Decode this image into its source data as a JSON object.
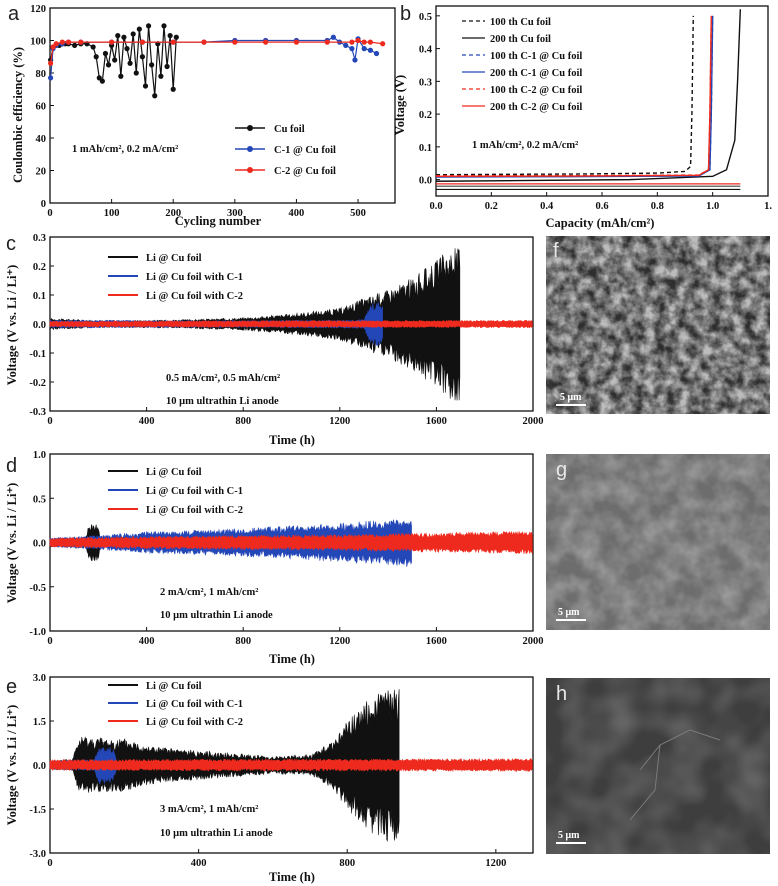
{
  "colors": {
    "black": "#111111",
    "blue": "#2447b8",
    "red": "#ee2a1e"
  },
  "chart_data": [
    {
      "panel": "a",
      "type": "scatter",
      "xlabel": "Cycling number",
      "ylabel": "Coulombic efficiency (%)",
      "xlim": [
        0,
        560
      ],
      "ylim": [
        0,
        120
      ],
      "xticks": [
        0,
        100,
        200,
        300,
        400,
        500
      ],
      "yticks": [
        0,
        20,
        40,
        60,
        80,
        100,
        120
      ],
      "legend_pos": "center-right",
      "annotation": "1 mAh/cm², 0.2 mA/cm²",
      "series": [
        {
          "name": "Cu foil",
          "color": "#111111",
          "x": [
            1,
            5,
            10,
            15,
            20,
            25,
            30,
            40,
            50,
            60,
            70,
            75,
            80,
            85,
            90,
            95,
            100,
            105,
            110,
            115,
            120,
            125,
            130,
            135,
            140,
            145,
            150,
            155,
            160,
            165,
            170,
            175,
            180,
            185,
            190,
            195,
            200,
            205
          ],
          "y": [
            88,
            96,
            97,
            97,
            98,
            98,
            98,
            97,
            98,
            98,
            96,
            90,
            77,
            75,
            92,
            85,
            97,
            88,
            103,
            78,
            102,
            95,
            86,
            104,
            80,
            107,
            90,
            72,
            109,
            85,
            66,
            98,
            78,
            109,
            84,
            103,
            70,
            102
          ]
        },
        {
          "name": "C-1 @ Cu foil",
          "color": "#2447b8",
          "x": [
            1,
            5,
            10,
            20,
            30,
            50,
            100,
            150,
            200,
            250,
            300,
            350,
            400,
            450,
            460,
            470,
            480,
            490,
            495,
            500,
            510,
            520,
            530
          ],
          "y": [
            77,
            95,
            97,
            98,
            99,
            99,
            99,
            99,
            99,
            99,
            100,
            100,
            100,
            100,
            102,
            99,
            97,
            95,
            88,
            101,
            95,
            94,
            92
          ]
        },
        {
          "name": "C-2 @ Cu foil",
          "color": "#ee2a1e",
          "x": [
            1,
            5,
            10,
            20,
            30,
            50,
            100,
            150,
            200,
            250,
            300,
            350,
            400,
            450,
            490,
            500,
            510,
            520,
            540
          ],
          "y": [
            86,
            96,
            98,
            99,
            99,
            99,
            99,
            99,
            99,
            99,
            99,
            99,
            99,
            99,
            99,
            100,
            99,
            99,
            98
          ]
        }
      ]
    },
    {
      "panel": "b",
      "type": "line",
      "xlabel": "Capacity (mAh/cm²)",
      "ylabel": "Voltage (V)",
      "xlim": [
        0,
        1.2
      ],
      "ylim": [
        -0.05,
        0.53
      ],
      "xticks": [
        "0.0",
        "0.2",
        "0.4",
        "0.6",
        "0.8",
        "1.0",
        "1."
      ],
      "yticks": [
        "0.0",
        "0.1",
        "0.2",
        "0.3",
        "0.4",
        "0.5"
      ],
      "legend_pos": "top-left",
      "annotation": "1 mAh/cm², 0.2 mA/cm²",
      "series": [
        {
          "name": "100 th Cu foil",
          "color": "#111111",
          "dash": true,
          "x": [
            0,
            0.2,
            0.5,
            0.8,
            0.9,
            0.92,
            0.925,
            0.93
          ],
          "y": [
            0.015,
            0.016,
            0.017,
            0.02,
            0.025,
            0.04,
            0.2,
            0.5
          ]
        },
        {
          "name": "200 th Cu foil",
          "color": "#111111",
          "dash": false,
          "x": [
            0,
            0.3,
            0.7,
            1.0,
            1.05,
            1.08,
            1.09,
            1.1
          ],
          "y": [
            -0.005,
            -0.003,
            0,
            0.01,
            0.03,
            0.12,
            0.3,
            0.52
          ]
        },
        {
          "name": "100 th C-1 @ Cu foil",
          "color": "#2447b8",
          "dash": true,
          "x": [
            0,
            0.5,
            0.95,
            0.99,
            0.995,
            1.0
          ],
          "y": [
            0.01,
            0.01,
            0.012,
            0.03,
            0.2,
            0.5
          ]
        },
        {
          "name": "200 th C-1 @ Cu foil",
          "color": "#2447b8",
          "dash": false,
          "x": [
            0,
            0.5,
            0.95,
            0.99,
            0.995,
            1.0
          ],
          "y": [
            0.008,
            0.009,
            0.011,
            0.03,
            0.2,
            0.5
          ]
        },
        {
          "name": "100 th C-2 @ Cu foil",
          "color": "#ee2a1e",
          "dash": true,
          "x": [
            0,
            0.5,
            0.95,
            0.985,
            0.99,
            0.995
          ],
          "y": [
            0.012,
            0.012,
            0.014,
            0.03,
            0.2,
            0.5
          ]
        },
        {
          "name": "200 th C-2 @ Cu foil",
          "color": "#ee2a1e",
          "dash": false,
          "x": [
            0,
            0.5,
            0.95,
            0.985,
            0.99,
            0.995
          ],
          "y": [
            0.01,
            0.011,
            0.013,
            0.03,
            0.2,
            0.5
          ]
        }
      ],
      "discharge_curves_y": [
        -0.03,
        -0.02,
        -0.013
      ]
    },
    {
      "panel": "c",
      "type": "area",
      "xlabel": "Time (h)",
      "ylabel": "Voltage (V vs. Li / Li⁺)",
      "xlim": [
        0,
        2000
      ],
      "ylim": [
        -0.3,
        0.3
      ],
      "xticks": [
        0,
        400,
        800,
        1200,
        1600,
        2000
      ],
      "yticks": [
        "0.3",
        "0.2",
        "0.1",
        "0.0",
        "-0.1",
        "-0.2",
        "-0.3"
      ],
      "legend_pos": "top-left",
      "annotation": [
        "0.5 mA/cm², 0.5 mAh/cm²",
        "10 μm ultrathin Li anode"
      ],
      "series": [
        {
          "name": "Li @ Cu foil",
          "color": "#111111",
          "x": [
            0,
            200,
            400,
            600,
            800,
            1000,
            1200,
            1300,
            1400,
            1500,
            1600,
            1650,
            1700
          ],
          "amp": [
            0.02,
            0.012,
            0.013,
            0.016,
            0.022,
            0.035,
            0.055,
            0.09,
            0.12,
            0.16,
            0.22,
            0.26,
            0.27
          ]
        },
        {
          "name": "Li @ Cu foil with C-1",
          "color": "#2447b8",
          "x": [
            0,
            400,
            800,
            1200,
            1300,
            1330,
            1380
          ],
          "amp": [
            0.015,
            0.012,
            0.012,
            0.014,
            0.016,
            0.075,
            0.08
          ]
        },
        {
          "name": "Li @ Cu foil with C-2",
          "color": "#ee2a1e",
          "x": [
            0,
            500,
            1000,
            1500,
            2000
          ],
          "amp": [
            0.01,
            0.011,
            0.012,
            0.012,
            0.013
          ]
        }
      ]
    },
    {
      "panel": "d",
      "type": "area",
      "xlabel": "Time (h)",
      "ylabel": "Voltage (V vs. Li / Li⁺)",
      "xlim": [
        0,
        2000
      ],
      "ylim": [
        -1.0,
        1.0
      ],
      "xticks": [
        0,
        400,
        800,
        1200,
        1600,
        2000
      ],
      "yticks": [
        "1.0",
        "0.5",
        "0.0",
        "-0.5",
        "-1.0"
      ],
      "legend_pos": "top-left",
      "annotation": [
        "2 mA/cm², 1 mAh/cm²",
        "10 μm ultrathin Li anode"
      ],
      "series": [
        {
          "name": "Li @ Cu foil",
          "color": "#111111",
          "x": [
            0,
            150,
            160,
            200,
            210
          ],
          "amp": [
            0.05,
            0.06,
            0.22,
            0.2,
            0.05
          ]
        },
        {
          "name": "Li @ Cu foil with C-1",
          "color": "#2447b8",
          "x": [
            0,
            200,
            400,
            800,
            1200,
            1500
          ],
          "amp": [
            0.05,
            0.08,
            0.12,
            0.16,
            0.22,
            0.28
          ]
        },
        {
          "name": "Li @ Cu foil with C-2",
          "color": "#ee2a1e",
          "x": [
            0,
            400,
            800,
            1200,
            1600,
            2000
          ],
          "amp": [
            0.05,
            0.07,
            0.08,
            0.09,
            0.11,
            0.13
          ]
        }
      ]
    },
    {
      "panel": "e",
      "type": "area",
      "xlabel": "Time (h)",
      "ylabel": "Voltage (V vs. Li / Li⁺)",
      "xlim": [
        0,
        1300
      ],
      "ylim": [
        -3.0,
        3.0
      ],
      "xticks": [
        0,
        400,
        800,
        1200
      ],
      "yticks": [
        "3.0",
        "1.5",
        "0.0",
        "-1.5",
        "-3.0"
      ],
      "legend_pos": "top-left",
      "annotation": [
        "3 mA/cm², 1 mAh/cm²",
        "10 μm ultrathin Li anode"
      ],
      "series": [
        {
          "name": "Li @ Cu foil",
          "color": "#111111",
          "x": [
            0,
            60,
            80,
            200,
            300,
            400,
            500,
            600,
            700,
            760,
            800,
            860,
            900,
            940
          ],
          "amp": [
            0.15,
            0.2,
            1.0,
            0.9,
            0.6,
            0.5,
            0.4,
            0.3,
            0.35,
            0.8,
            1.5,
            2.3,
            2.6,
            2.7
          ]
        },
        {
          "name": "Li @ Cu foil with C-1",
          "color": "#2447b8",
          "x": [
            0,
            120,
            130,
            170,
            180
          ],
          "amp": [
            0.15,
            0.2,
            0.65,
            0.6,
            0.15
          ]
        },
        {
          "name": "Li @ Cu foil with C-2",
          "color": "#ee2a1e",
          "x": [
            0,
            400,
            800,
            1300
          ],
          "amp": [
            0.18,
            0.2,
            0.2,
            0.22
          ]
        }
      ]
    }
  ],
  "panel_letters": [
    "a",
    "b",
    "c",
    "d",
    "e",
    "f",
    "g",
    "h"
  ],
  "sem_images": [
    {
      "panel": "f",
      "scale_bar": "5 μm"
    },
    {
      "panel": "g",
      "scale_bar": "5 μm"
    },
    {
      "panel": "h",
      "scale_bar": "5 μm"
    }
  ]
}
